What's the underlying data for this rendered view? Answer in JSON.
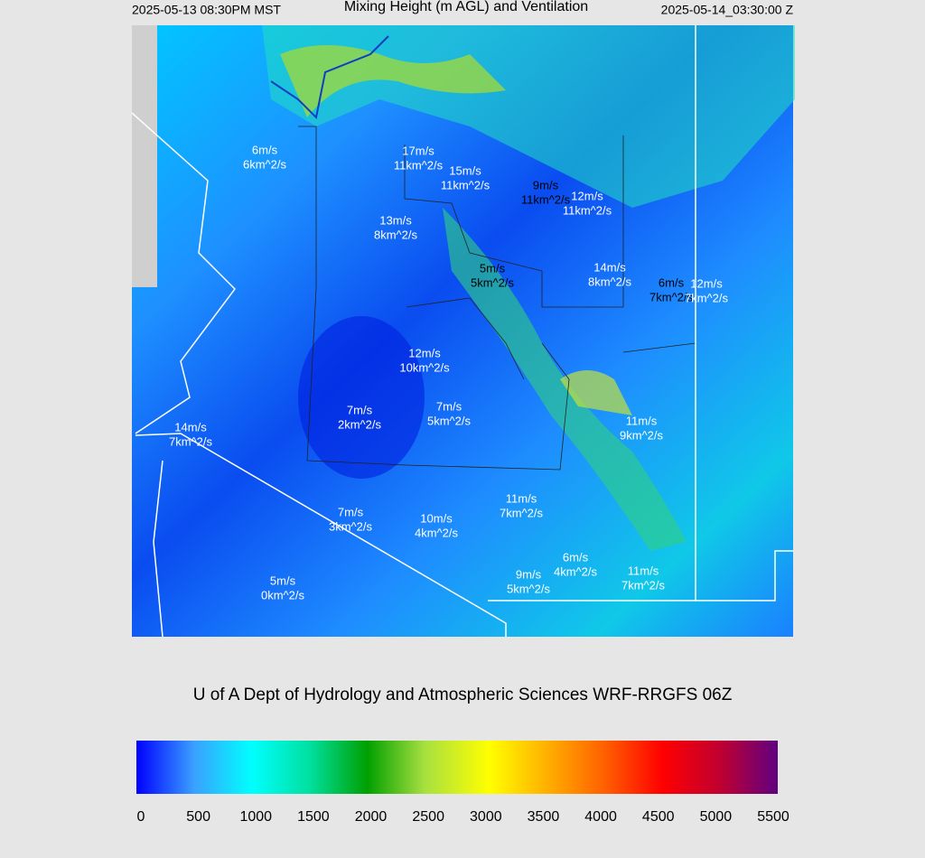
{
  "header": {
    "local_time": "2025-05-13 08:30PM MST",
    "title": "Mixing Height (m AGL) and Ventilation",
    "utc_time": "2025-05-14_03:30:00 Z"
  },
  "stations": [
    {
      "wind": "6m/s",
      "ventilation": "6km^2/s"
    },
    {
      "wind": "17m/s",
      "ventilation": "11km^2/s"
    },
    {
      "wind": "15m/s",
      "ventilation": "11km^2/s"
    },
    {
      "wind": "9m/s",
      "ventilation": "11km^2/s"
    },
    {
      "wind": "12m/s",
      "ventilation": "11km^2/s"
    },
    {
      "wind": "13m/s",
      "ventilation": "8km^2/s"
    },
    {
      "wind": "5m/s",
      "ventilation": "5km^2/s"
    },
    {
      "wind": "14m/s",
      "ventilation": "8km^2/s"
    },
    {
      "wind": "6m/s",
      "ventilation": "7km^2/s"
    },
    {
      "wind": "12m/s",
      "ventilation": "7km^2/s"
    },
    {
      "wind": "12m/s",
      "ventilation": "10km^2/s"
    },
    {
      "wind": "7m/s",
      "ventilation": "2km^2/s"
    },
    {
      "wind": "7m/s",
      "ventilation": "5km^2/s"
    },
    {
      "wind": "11m/s",
      "ventilation": "9km^2/s"
    },
    {
      "wind": "14m/s",
      "ventilation": "7km^2/s"
    },
    {
      "wind": "11m/s",
      "ventilation": "7km^2/s"
    },
    {
      "wind": "7m/s",
      "ventilation": "3km^2/s"
    },
    {
      "wind": "10m/s",
      "ventilation": "4km^2/s"
    },
    {
      "wind": "6m/s",
      "ventilation": "4km^2/s"
    },
    {
      "wind": "9m/s",
      "ventilation": "5km^2/s"
    },
    {
      "wind": "11m/s",
      "ventilation": "7km^2/s"
    },
    {
      "wind": "5m/s",
      "ventilation": "0km^2/s"
    }
  ],
  "credit": "U of A Dept of Hydrology and Atmospheric Sciences WRF-RRGFS 06Z",
  "colorbar": {
    "lim": [
      0,
      5500
    ],
    "ticks": [
      0,
      500,
      1000,
      1500,
      2000,
      2500,
      3000,
      3500,
      4000,
      4500,
      5000,
      5500
    ]
  }
}
